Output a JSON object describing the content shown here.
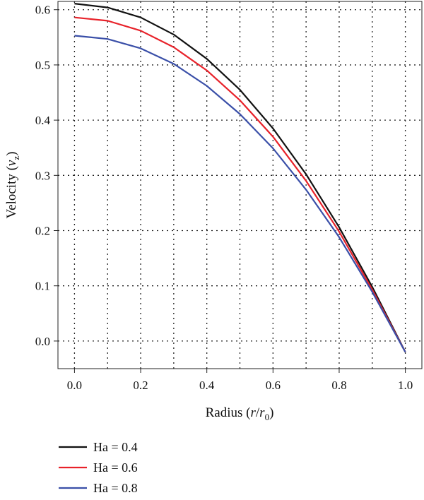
{
  "chart_data": {
    "type": "line",
    "title": "",
    "xlabel": "Radius",
    "xlabel_math": {
      "open": " (",
      "var": "r",
      "slash": "/",
      "var2": "r",
      "sub": "0",
      "close": ")"
    },
    "ylabel": "Velocity",
    "ylabel_math": {
      "open": " (",
      "var": "v",
      "sub": "z",
      "close": ")"
    },
    "xlim": [
      -0.05,
      1.05
    ],
    "ylim": [
      -0.05,
      0.615
    ],
    "xticks": [
      "0.0",
      "0.2",
      "0.4",
      "0.6",
      "0.8",
      "1.0"
    ],
    "xtick_values": [
      0.0,
      0.2,
      0.4,
      0.6,
      0.8,
      1.0
    ],
    "xgrid_values": [
      0.0,
      0.1,
      0.2,
      0.3,
      0.4,
      0.5,
      0.6,
      0.7,
      0.8,
      0.9,
      1.0
    ],
    "yticks": [
      "0.0",
      "0.1",
      "0.2",
      "0.3",
      "0.4",
      "0.5",
      "0.6"
    ],
    "ytick_values": [
      0.0,
      0.1,
      0.2,
      0.3,
      0.4,
      0.5,
      0.6
    ],
    "grid": true,
    "legend_position": "bottom-left, below plot",
    "x": [
      0.0,
      0.1,
      0.2,
      0.3,
      0.4,
      0.5,
      0.6,
      0.7,
      0.8,
      0.9,
      1.0
    ],
    "series": [
      {
        "name": "Ha = 0.4",
        "color": "#111111",
        "values": [
          0.611,
          0.604,
          0.586,
          0.555,
          0.511,
          0.455,
          0.385,
          0.302,
          0.206,
          0.098,
          -0.02
        ]
      },
      {
        "name": "Ha = 0.6",
        "color": "#e8222a",
        "values": [
          0.586,
          0.58,
          0.562,
          0.532,
          0.49,
          0.436,
          0.37,
          0.29,
          0.198,
          0.093,
          -0.02
        ]
      },
      {
        "name": "Ha = 0.8",
        "color": "#3a4fa8",
        "values": [
          0.553,
          0.547,
          0.53,
          0.502,
          0.462,
          0.411,
          0.349,
          0.274,
          0.188,
          0.089,
          -0.02
        ]
      }
    ]
  }
}
